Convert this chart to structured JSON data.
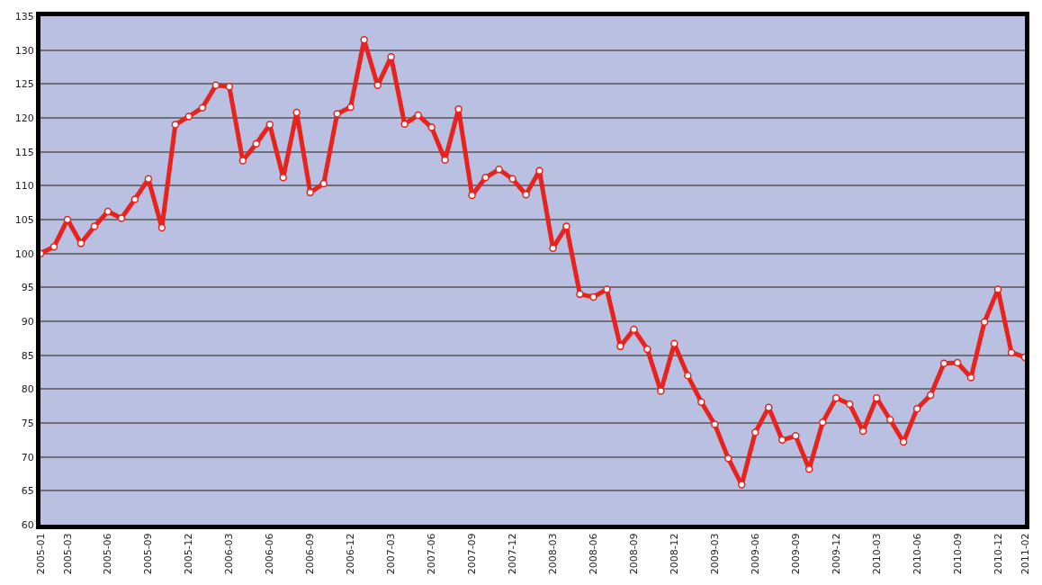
{
  "chart_data": {
    "type": "line",
    "categories": [
      "2005-01",
      null,
      "2005-03",
      null,
      null,
      "2005-06",
      null,
      null,
      "2005-09",
      null,
      null,
      "2005-12",
      null,
      null,
      "2006-03",
      null,
      null,
      "2006-06",
      null,
      null,
      "2006-09",
      null,
      null,
      "2006-12",
      null,
      null,
      "2007-03",
      null,
      null,
      "2007-06",
      null,
      null,
      "2007-09",
      null,
      null,
      "2007-12",
      null,
      null,
      "2008-03",
      null,
      null,
      "2008-06",
      null,
      null,
      "2008-09",
      null,
      null,
      "2008-12",
      null,
      null,
      "2009-03",
      null,
      null,
      "2009-06",
      null,
      null,
      "2009-09",
      null,
      null,
      "2009-12",
      null,
      null,
      "2010-03",
      null,
      null,
      "2010-06",
      null,
      null,
      "2010-09",
      null,
      null,
      "2010-12",
      null,
      "2011-02"
    ],
    "series": [
      {
        "color": "#e8231e",
        "values": [
          100,
          101,
          105,
          101.5,
          104,
          106.2,
          105.2,
          108,
          111,
          103.8,
          119,
          120.2,
          121.5,
          124.8,
          124.6,
          113.7,
          116.2,
          119,
          111.2,
          120.8,
          109,
          110.3,
          120.6,
          121.6,
          131.5,
          124.8,
          129,
          119.1,
          120.4,
          118.6,
          113.8,
          121.3,
          108.6,
          111.2,
          112.4,
          111,
          108.7,
          112.2,
          100.8,
          104,
          94,
          93.6,
          94.7,
          86.3,
          88.8,
          85.9,
          79.7,
          86.7,
          82,
          78.1,
          74.8,
          69.8,
          65.9,
          73.6,
          77.3,
          72.5,
          73.1,
          68.2,
          75.1,
          78.7,
          77.8,
          73.8,
          78.7,
          75.5,
          72.2,
          77.1,
          79.1,
          83.8,
          83.9,
          81.7,
          89.9,
          94.7,
          85.4,
          84.7
        ]
      }
    ],
    "ylim": [
      60,
      135
    ],
    "yticks": [
      60,
      65,
      70,
      75,
      80,
      85,
      90,
      95,
      100,
      105,
      110,
      115,
      120,
      125,
      130,
      135
    ],
    "grid": "y",
    "marker": "circle",
    "line_style": "solid"
  }
}
